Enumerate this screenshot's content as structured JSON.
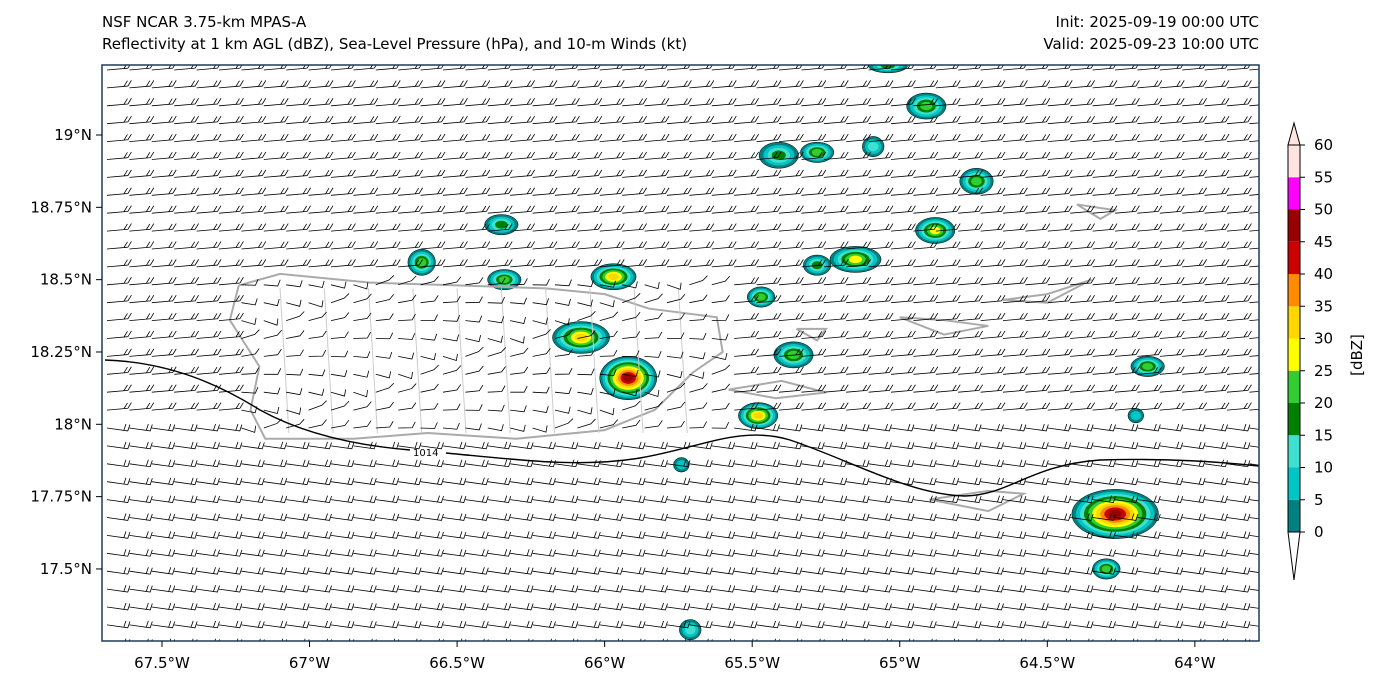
{
  "header": {
    "title_line1": "NSF NCAR 3.75-km MPAS-A",
    "title_line2": "Reflectivity at 1 km AGL (dBZ), Sea-Level Pressure (hPa), and 10-m Winds (kt)",
    "init": "Init: 2025-09-19 00:00 UTC",
    "valid": "Valid: 2025-09-23 10:00 UTC"
  },
  "axes": {
    "x_ticks": [
      {
        "lon": -67.5,
        "label": "67.5°W"
      },
      {
        "lon": -67,
        "label": "67°W"
      },
      {
        "lon": -66.5,
        "label": "66.5°W"
      },
      {
        "lon": -66,
        "label": "66°W"
      },
      {
        "lon": -65.5,
        "label": "65.5°W"
      },
      {
        "lon": -65,
        "label": "65°W"
      },
      {
        "lon": -64.5,
        "label": "64.5°W"
      },
      {
        "lon": -64,
        "label": "64°W"
      }
    ],
    "y_ticks": [
      {
        "lat": 19,
        "label": "19°N"
      },
      {
        "lat": 18.75,
        "label": "18.75°N"
      },
      {
        "lat": 18.5,
        "label": "18.5°N"
      },
      {
        "lat": 18.25,
        "label": "18.25°N"
      },
      {
        "lat": 18,
        "label": "18°N"
      },
      {
        "lat": 17.75,
        "label": "17.75°N"
      },
      {
        "lat": 17.5,
        "label": "17.5°N"
      }
    ],
    "lon_range": [
      -67.7,
      -63.78
    ],
    "lat_range": [
      17.24,
      19.24
    ]
  },
  "colorbar": {
    "label": "[dBZ]",
    "ticks": [
      "0",
      "5",
      "10",
      "15",
      "20",
      "25",
      "30",
      "35",
      "40",
      "45",
      "50",
      "55",
      "60"
    ],
    "colors": [
      "#008080",
      "#00c5c5",
      "#40e0d0",
      "#008000",
      "#32cd32",
      "#ffff00",
      "#ffd700",
      "#ff8c00",
      "#cc0000",
      "#990000",
      "#ff00ff",
      "#ffe4e1"
    ]
  },
  "isobar": {
    "label": "1014"
  },
  "map_data": {
    "cells": [
      {
        "lon": -65.04,
        "lat": 19.24,
        "max_dbz": 15,
        "rx": 0.06,
        "ry": 0.02
      },
      {
        "lon": -64.91,
        "lat": 19.1,
        "max_dbz": 20,
        "rx": 0.06,
        "ry": 0.04
      },
      {
        "lon": -65.41,
        "lat": 18.93,
        "max_dbz": 15,
        "rx": 0.06,
        "ry": 0.04
      },
      {
        "lon": -65.28,
        "lat": 18.94,
        "max_dbz": 20,
        "rx": 0.05,
        "ry": 0.03
      },
      {
        "lon": -65.09,
        "lat": 18.96,
        "max_dbz": 10,
        "rx": 0.03,
        "ry": 0.03
      },
      {
        "lon": -64.74,
        "lat": 18.84,
        "max_dbz": 20,
        "rx": 0.05,
        "ry": 0.04
      },
      {
        "lon": -66.35,
        "lat": 18.69,
        "max_dbz": 15,
        "rx": 0.05,
        "ry": 0.03
      },
      {
        "lon": -64.88,
        "lat": 18.67,
        "max_dbz": 25,
        "rx": 0.06,
        "ry": 0.04
      },
      {
        "lon": -65.15,
        "lat": 18.57,
        "max_dbz": 25,
        "rx": 0.08,
        "ry": 0.04
      },
      {
        "lon": -65.28,
        "lat": 18.55,
        "max_dbz": 15,
        "rx": 0.04,
        "ry": 0.03
      },
      {
        "lon": -66.62,
        "lat": 18.56,
        "max_dbz": 20,
        "rx": 0.04,
        "ry": 0.04
      },
      {
        "lon": -66.34,
        "lat": 18.5,
        "max_dbz": 20,
        "rx": 0.05,
        "ry": 0.03
      },
      {
        "lon": -65.97,
        "lat": 18.51,
        "max_dbz": 30,
        "rx": 0.07,
        "ry": 0.04
      },
      {
        "lon": -65.47,
        "lat": 18.44,
        "max_dbz": 20,
        "rx": 0.04,
        "ry": 0.03
      },
      {
        "lon": -66.08,
        "lat": 18.3,
        "max_dbz": 30,
        "rx": 0.09,
        "ry": 0.05
      },
      {
        "lon": -65.92,
        "lat": 18.16,
        "max_dbz": 45,
        "rx": 0.09,
        "ry": 0.07
      },
      {
        "lon": -65.36,
        "lat": 18.24,
        "max_dbz": 20,
        "rx": 0.06,
        "ry": 0.04
      },
      {
        "lon": -64.16,
        "lat": 18.2,
        "max_dbz": 20,
        "rx": 0.05,
        "ry": 0.03
      },
      {
        "lon": -65.48,
        "lat": 18.03,
        "max_dbz": 30,
        "rx": 0.06,
        "ry": 0.04
      },
      {
        "lon": -64.2,
        "lat": 18.03,
        "max_dbz": 5,
        "rx": 0.02,
        "ry": 0.02
      },
      {
        "lon": -65.74,
        "lat": 17.86,
        "max_dbz": 5,
        "rx": 0.02,
        "ry": 0.02
      },
      {
        "lon": -64.27,
        "lat": 17.69,
        "max_dbz": 45,
        "rx": 0.14,
        "ry": 0.08
      },
      {
        "lon": -64.3,
        "lat": 17.5,
        "max_dbz": 20,
        "rx": 0.04,
        "ry": 0.03
      },
      {
        "lon": -65.71,
        "lat": 17.29,
        "max_dbz": 10,
        "rx": 0.03,
        "ry": 0.03
      }
    ]
  }
}
